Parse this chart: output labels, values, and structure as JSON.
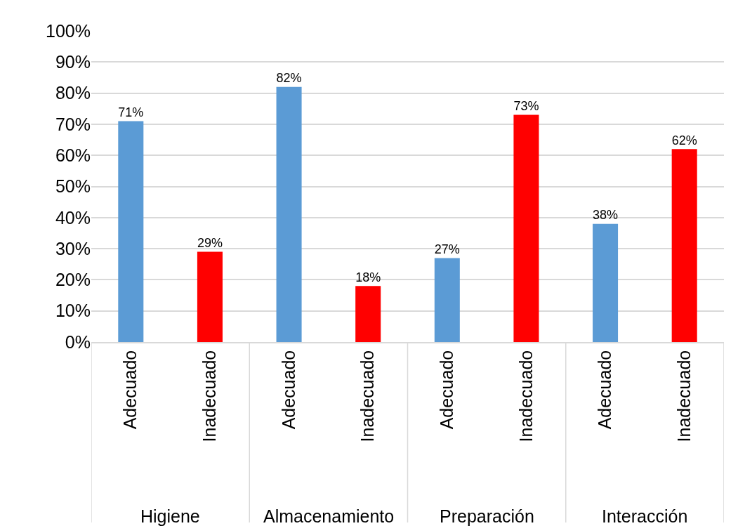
{
  "chart_data": {
    "type": "bar",
    "categories": [
      "Adecuado",
      "Inadecuado",
      "Adecuado",
      "Inadecuado",
      "Adecuado",
      "Inadecuado",
      "Adecuado",
      "Inadecuado"
    ],
    "values": [
      71,
      29,
      82,
      18,
      27,
      73,
      38,
      62
    ],
    "colors": [
      "#5b9bd5",
      "#ff0000",
      "#5b9bd5",
      "#ff0000",
      "#5b9bd5",
      "#ff0000",
      "#5b9bd5",
      "#ff0000"
    ],
    "value_labels": [
      "71%",
      "29%",
      "82%",
      "18%",
      "27%",
      "73%",
      "38%",
      "62%"
    ],
    "ylim": [
      0,
      100
    ],
    "yticks": [
      {
        "value": 0,
        "label": "0%"
      },
      {
        "value": 10,
        "label": "10%"
      },
      {
        "value": 20,
        "label": "20%"
      },
      {
        "value": 30,
        "label": "30%"
      },
      {
        "value": 40,
        "label": "40%"
      },
      {
        "value": 50,
        "label": "50%"
      },
      {
        "value": 60,
        "label": "60%"
      },
      {
        "value": 70,
        "label": "70%"
      },
      {
        "value": 80,
        "label": "80%"
      },
      {
        "value": 90,
        "label": "90%"
      },
      {
        "value": 100,
        "label": "100%"
      }
    ],
    "annotations": [
      "Higiene",
      "Almacenamiento",
      "Preparación",
      "Interacción"
    ],
    "grid": "y",
    "legend": false
  }
}
